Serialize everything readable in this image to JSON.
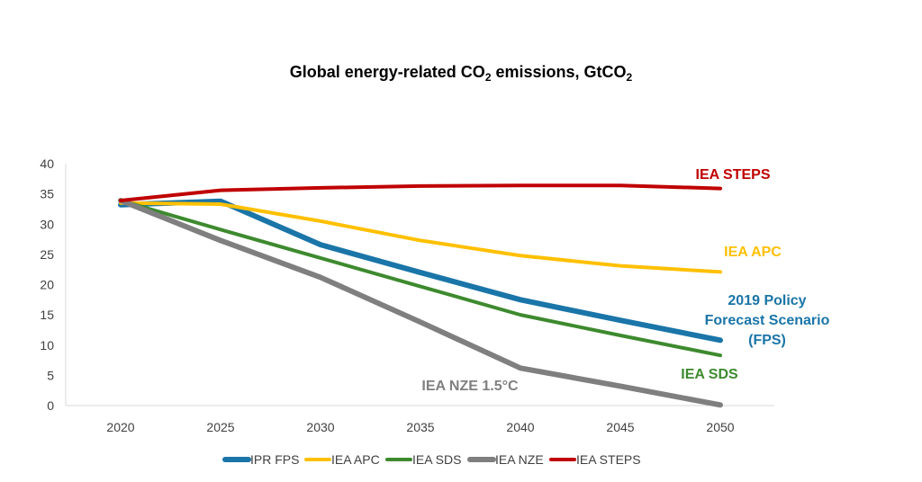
{
  "title": {
    "prefix": "Global energy-related CO",
    "sub1": "2",
    "mid": " emissions, GtCO",
    "sub2": "2"
  },
  "chart_data": {
    "type": "line",
    "title": "Global energy-related CO2 emissions, GtCO2",
    "xlabel": "",
    "ylabel": "",
    "x": [
      2020,
      2025,
      2030,
      2035,
      2040,
      2045,
      2050
    ],
    "xticks": [
      "2020",
      "2025",
      "2030",
      "2035",
      "2040",
      "2045",
      "2050"
    ],
    "yticks": [
      0,
      5,
      10,
      15,
      20,
      25,
      30,
      35,
      40
    ],
    "ylim": [
      0,
      40
    ],
    "grid": false,
    "legend_position": "bottom",
    "series": [
      {
        "name": "IPR FPS",
        "color": "#1a75a8",
        "width": 6,
        "values": [
          33.2,
          33.8,
          26.6,
          22.0,
          17.5,
          14.1,
          10.8
        ]
      },
      {
        "name": "IEA APC",
        "color": "#ffc000",
        "width": 4,
        "values": [
          33.5,
          33.3,
          30.5,
          27.3,
          24.8,
          23.1,
          22.1
        ]
      },
      {
        "name": "IEA SDS",
        "color": "#3d8a2e",
        "width": 4,
        "values": [
          33.9,
          29.1,
          24.4,
          19.7,
          15.0,
          11.6,
          8.3
        ]
      },
      {
        "name": "IEA NZE",
        "color": "#7f7f7f",
        "width": 6,
        "values": [
          33.9,
          27.3,
          21.2,
          13.8,
          6.2,
          3.2,
          0.1
        ]
      },
      {
        "name": "IEA STEPS",
        "color": "#c00000",
        "width": 4,
        "values": [
          33.9,
          35.6,
          36.0,
          36.3,
          36.4,
          36.4,
          35.9
        ]
      }
    ],
    "annotations": [
      {
        "series": "IEA STEPS",
        "lines": [
          "IEA STEPS"
        ],
        "color": "#c00000"
      },
      {
        "series": "IEA APC",
        "lines": [
          "IEA APC"
        ],
        "color": "#ffc000"
      },
      {
        "series": "IPR FPS",
        "lines": [
          "2019 Policy",
          "Forecast Scenario",
          "(FPS)"
        ],
        "color": "#1a75a8"
      },
      {
        "series": "IEA SDS",
        "lines": [
          "IEA SDS"
        ],
        "color": "#3d8a2e"
      },
      {
        "series": "IEA NZE",
        "lines": [
          "IEA NZE 1.5°C"
        ],
        "color": "#7f7f7f"
      }
    ]
  }
}
